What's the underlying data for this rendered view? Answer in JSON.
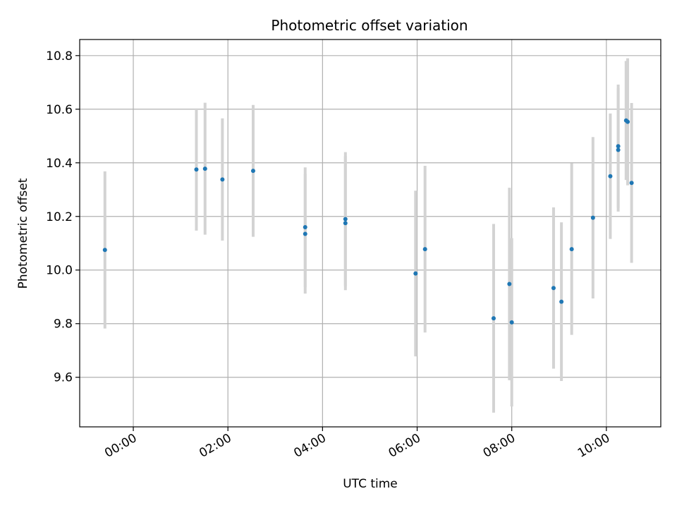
{
  "chart_data": {
    "type": "scatter",
    "title": "Photometric offset variation",
    "xlabel": "UTC time",
    "ylabel": "Photometric offset",
    "x_axis_type": "time",
    "x_ticks": [
      "00:00",
      "02:00",
      "04:00",
      "06:00",
      "08:00",
      "10:00"
    ],
    "xlim": [
      "-01:08",
      "11:09"
    ],
    "y_ticks": [
      9.6,
      9.8,
      10.0,
      10.2,
      10.4,
      10.6,
      10.8
    ],
    "y_tick_labels": [
      "9.6",
      "9.8",
      "10.0",
      "10.2",
      "10.4",
      "10.6",
      "10.8"
    ],
    "ylim": [
      9.415,
      10.86
    ],
    "grid": true,
    "colors": {
      "marker": "#1f77b4",
      "error_bar": "#d3d3d3",
      "grid": "#b0b0b0"
    },
    "points": [
      {
        "time": "-00:36",
        "y": 10.075,
        "err": 0.293
      },
      {
        "time": "01:20",
        "y": 10.375,
        "err": 0.228
      },
      {
        "time": "01:31",
        "y": 10.378,
        "err": 0.246
      },
      {
        "time": "01:53",
        "y": 10.338,
        "err": 0.228
      },
      {
        "time": "02:32",
        "y": 10.37,
        "err": 0.246
      },
      {
        "time": "03:38",
        "y": 10.16,
        "err": 0.223
      },
      {
        "time": "03:38",
        "y": 10.135,
        "err": 0.223
      },
      {
        "time": "04:29",
        "y": 10.19,
        "err": 0.25
      },
      {
        "time": "04:29",
        "y": 10.175,
        "err": 0.25
      },
      {
        "time": "05:58",
        "y": 9.987,
        "err": 0.309
      },
      {
        "time": "06:10",
        "y": 10.078,
        "err": 0.311
      },
      {
        "time": "07:37",
        "y": 9.82,
        "err": 0.352
      },
      {
        "time": "07:57",
        "y": 9.948,
        "err": 0.359
      },
      {
        "time": "08:00",
        "y": 9.805,
        "err": 0.314
      },
      {
        "time": "08:53",
        "y": 9.933,
        "err": 0.301
      },
      {
        "time": "09:03",
        "y": 9.882,
        "err": 0.296
      },
      {
        "time": "09:16",
        "y": 10.078,
        "err": 0.32
      },
      {
        "time": "09:43",
        "y": 10.195,
        "err": 0.301
      },
      {
        "time": "10:05",
        "y": 10.35,
        "err": 0.234
      },
      {
        "time": "10:15",
        "y": 10.462,
        "err": 0.23
      },
      {
        "time": "10:15",
        "y": 10.448,
        "err": 0.23
      },
      {
        "time": "10:25",
        "y": 10.558,
        "err": 0.222
      },
      {
        "time": "10:27",
        "y": 10.553,
        "err": 0.237
      },
      {
        "time": "10:32",
        "y": 10.325,
        "err": 0.298
      }
    ]
  }
}
